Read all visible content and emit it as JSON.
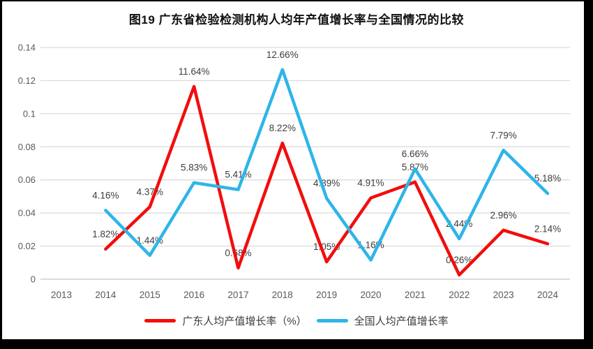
{
  "chart_data": {
    "type": "line",
    "title": "图19  广东省检验检测机构人均年产值增长率与全国情况的比较",
    "categories": [
      "2013",
      "2014",
      "2015",
      "2016",
      "2017",
      "2018",
      "2019",
      "2020",
      "2021",
      "2022",
      "2023",
      "2024"
    ],
    "series": [
      {
        "name": "广东人均产值增长率（%）",
        "color": "#f20d0d",
        "values": [
          null,
          0.0182,
          0.0437,
          0.1164,
          0.0068,
          0.0822,
          0.0105,
          0.0491,
          0.0587,
          0.0026,
          0.0296,
          0.0214
        ],
        "labels": [
          null,
          "1.82%",
          "4.37%",
          "11.64%",
          "0.68%",
          "8.22%",
          "1.05%",
          "4.91%",
          "5.87%",
          "0.26%",
          "2.96%",
          "2.14%"
        ]
      },
      {
        "name": "全国人均产值增长率",
        "color": "#2eb5e8",
        "values": [
          null,
          0.0416,
          0.0144,
          0.0583,
          0.0541,
          0.1266,
          0.0489,
          0.0116,
          0.0666,
          0.0244,
          0.0779,
          0.0518
        ],
        "labels": [
          null,
          "4.16%",
          "1.44%",
          "5.83%",
          "5.41%",
          "12.66%",
          "4.89%",
          "1.16%",
          "6.66%",
          "2.44%",
          "7.79%",
          "5.18%"
        ]
      }
    ],
    "y_axis": {
      "min": 0,
      "max": 0.14,
      "tick_step": 0.02,
      "tick_labels": [
        "0",
        "0.02",
        "0.04",
        "0.06",
        "0.08",
        "0.1",
        "0.12",
        "0.14"
      ]
    },
    "grid": true,
    "legend_position": "bottom",
    "colors": {
      "gridline": "#d9d9d9",
      "zero_line": "#c6c6c6",
      "tick_label": "#595959",
      "data_label": "#3d3d3d"
    }
  }
}
